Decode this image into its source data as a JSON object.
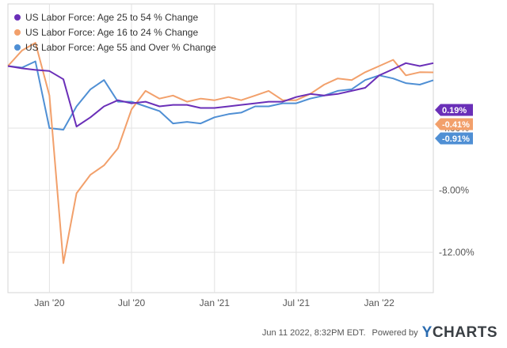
{
  "chart_data": {
    "type": "line",
    "legend_position": "top-left",
    "grid": true,
    "x_tick_labels": [
      "Jan '20",
      "Jul '20",
      "Jan '21",
      "Jul '21",
      "Jan '22"
    ],
    "y_tick_labels": [
      "-4.00%",
      "-8.00%",
      "-12.00%"
    ],
    "y_ticks": [
      -4,
      -8,
      -12
    ],
    "ylim": [
      -14.6,
      4.0
    ],
    "x_months": [
      "2019-10",
      "2019-11",
      "2019-12",
      "2020-01",
      "2020-02",
      "2020-03",
      "2020-04",
      "2020-05",
      "2020-06",
      "2020-07",
      "2020-08",
      "2020-09",
      "2020-10",
      "2020-11",
      "2020-12",
      "2021-01",
      "2021-02",
      "2021-03",
      "2021-04",
      "2021-05",
      "2021-06",
      "2021-07",
      "2021-08",
      "2021-09",
      "2021-10",
      "2021-11",
      "2021-12",
      "2022-01",
      "2022-02",
      "2022-03",
      "2022-04",
      "2022-05"
    ],
    "series": [
      {
        "name": "US Labor Force: Age 25 to 54 % Change",
        "color": "#6a2fb8",
        "end_label": "0.19%",
        "values": [
          0,
          -0.15,
          -0.25,
          -0.32,
          -0.85,
          -3.9,
          -3.3,
          -2.6,
          -2.2,
          -2.4,
          -2.3,
          -2.6,
          -2.5,
          -2.5,
          -2.7,
          -2.7,
          -2.6,
          -2.5,
          -2.4,
          -2.3,
          -2.3,
          -2.0,
          -1.8,
          -1.9,
          -1.8,
          -1.6,
          -1.4,
          -0.6,
          -0.2,
          0.19,
          0.0,
          0.19
        ]
      },
      {
        "name": "US Labor Force: Age 16 to 24 % Change",
        "color": "#f2a06b",
        "end_label": "-0.41%",
        "values": [
          0,
          1.0,
          1.5,
          -1.9,
          -12.7,
          -8.2,
          -7.0,
          -6.4,
          -5.3,
          -2.8,
          -1.6,
          -2.1,
          -1.9,
          -2.3,
          -2.1,
          -2.2,
          -2.0,
          -2.2,
          -1.9,
          -1.6,
          -2.2,
          -2.2,
          -1.8,
          -1.2,
          -0.8,
          -0.9,
          -0.4,
          0.0,
          0.4,
          -0.6,
          -0.4,
          -0.41
        ]
      },
      {
        "name": "US Labor Force: Age 55 and Over % Change",
        "color": "#4f8fd4",
        "end_label": "-0.91%",
        "values": [
          0,
          -0.1,
          0.3,
          -4.0,
          -4.1,
          -2.6,
          -1.5,
          -0.9,
          -2.3,
          -2.3,
          -2.6,
          -2.9,
          -3.7,
          -3.6,
          -3.7,
          -3.3,
          -3.1,
          -3.0,
          -2.6,
          -2.6,
          -2.4,
          -2.4,
          -2.1,
          -1.9,
          -1.6,
          -1.5,
          -0.9,
          -0.6,
          -0.8,
          -1.1,
          -1.2,
          -0.91
        ]
      }
    ]
  },
  "footer": {
    "timestamp": "Jun 11 2022, 8:32PM EDT.",
    "powered_by": "Powered by",
    "brand_y": "Y",
    "brand_rest": "CHARTS"
  }
}
